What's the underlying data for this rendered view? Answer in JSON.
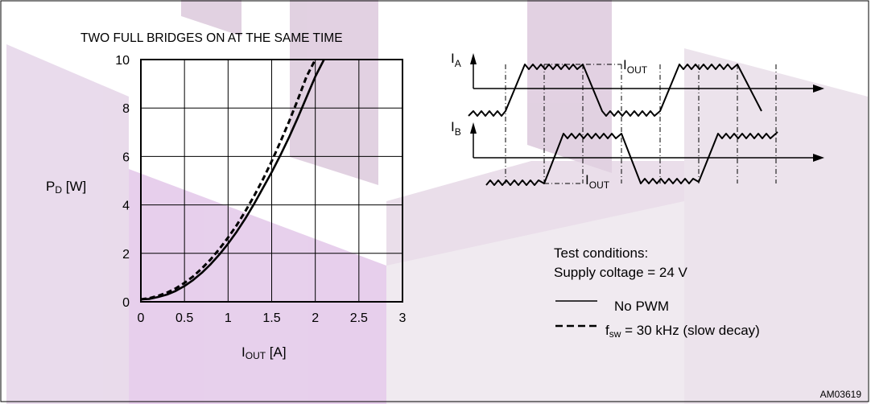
{
  "chart_data": {
    "type": "line",
    "title": "TWO FULL BRIDGES ON AT THE SAME TIME",
    "ylabel": "P",
    "ylabel_sub": "D",
    "ylabel_unit": " [W]",
    "xlabel": "I",
    "xlabel_sub": "OUT",
    "xlabel_unit": " [A]",
    "xlim": [
      0,
      3
    ],
    "ylim": [
      0,
      10
    ],
    "xticks": [
      "0",
      "0.5",
      "1",
      "1.5",
      "2",
      "2.5",
      "3"
    ],
    "yticks": [
      "0",
      "2",
      "4",
      "6",
      "8",
      "10"
    ],
    "grid": true,
    "series": [
      {
        "name": "No PWM",
        "style": "solid",
        "x": [
          0,
          0.1,
          0.2,
          0.3,
          0.4,
          0.5,
          0.6,
          0.7,
          0.8,
          0.9,
          1.0,
          1.1,
          1.2,
          1.3,
          1.4,
          1.5,
          1.6,
          1.7,
          1.8,
          1.9,
          2.0,
          2.1
        ],
        "values": [
          0.1,
          0.12,
          0.2,
          0.3,
          0.45,
          0.65,
          0.9,
          1.2,
          1.55,
          1.95,
          2.4,
          2.9,
          3.45,
          4.05,
          4.7,
          5.35,
          6.05,
          6.8,
          7.6,
          8.45,
          9.3,
          10.0
        ]
      },
      {
        "name": "f_sw = 30 kHz (slow decay)",
        "style": "dashed",
        "x": [
          0,
          0.1,
          0.2,
          0.3,
          0.4,
          0.5,
          0.6,
          0.7,
          0.8,
          0.9,
          1.0,
          1.1,
          1.2,
          1.3,
          1.4,
          1.5,
          1.6,
          1.7,
          1.8,
          1.9,
          2.0
        ],
        "values": [
          0.1,
          0.15,
          0.25,
          0.38,
          0.55,
          0.78,
          1.05,
          1.38,
          1.75,
          2.18,
          2.65,
          3.17,
          3.75,
          4.38,
          5.06,
          5.8,
          6.6,
          7.45,
          8.35,
          9.3,
          10.0
        ]
      }
    ]
  },
  "inset": {
    "ia_main": "I",
    "ia_sub": "A",
    "ib_main": "I",
    "ib_sub": "B",
    "iout1_main": "I",
    "iout1_sub": "OUT",
    "iout2_main": "I",
    "iout2_sub": "OUT"
  },
  "legend": {
    "conditions_title": "Test conditions:",
    "conditions_line": "Supply coltage = 24 V",
    "solid_label": "No PWM",
    "dashed_label_main": "f",
    "dashed_label_sub": "sw",
    "dashed_label_rest": " = 30 kHz (slow decay)"
  },
  "figure_id": "AM03619",
  "colors": {
    "watermark": "#cbb0cb",
    "watermark_light": "#e7d4ea",
    "frame": "#000000"
  }
}
